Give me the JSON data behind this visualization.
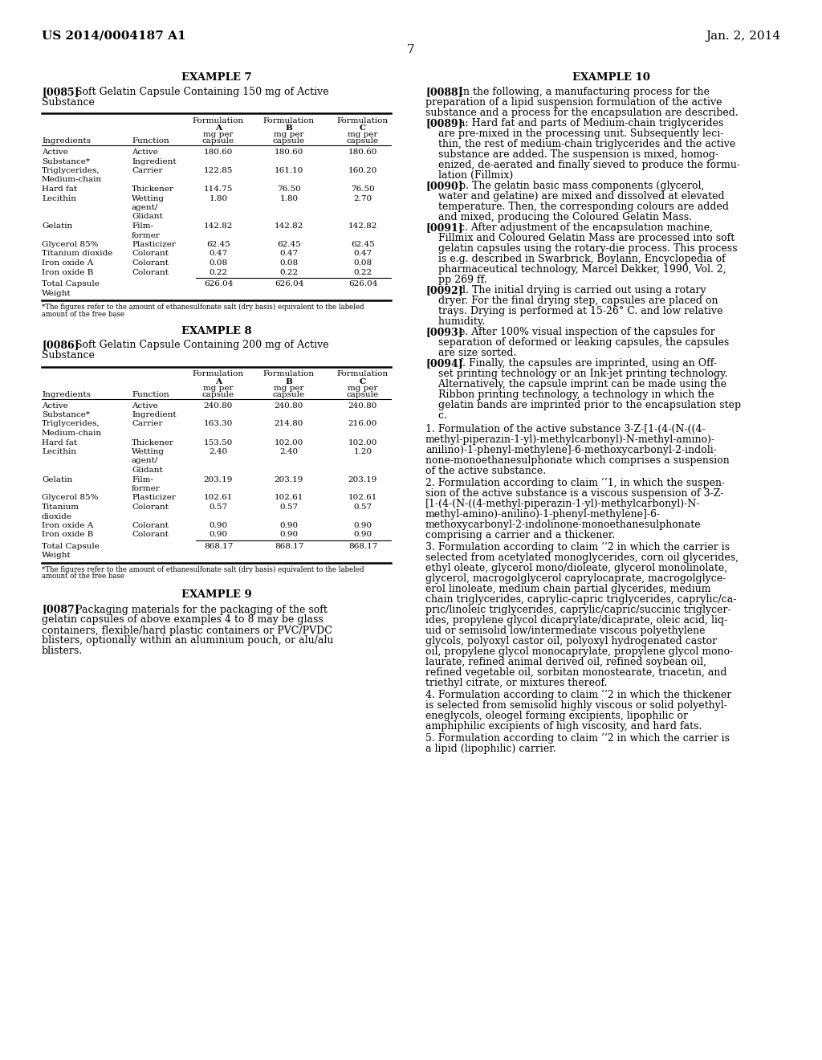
{
  "bg_color": "#ffffff",
  "header_left": "US 2014/0004187 A1",
  "header_right": "Jan. 2, 2014",
  "page_number": "7",
  "table1_footnote": "*The figures refer to the amount of ethanesulfonate salt (dry basis) equivalent to the labeled\namount of the free base",
  "table2_footnote": "*The figures refer to the amount of ethanesulfonate salt (dry basis) equivalent to the labeled\namount of the free base"
}
